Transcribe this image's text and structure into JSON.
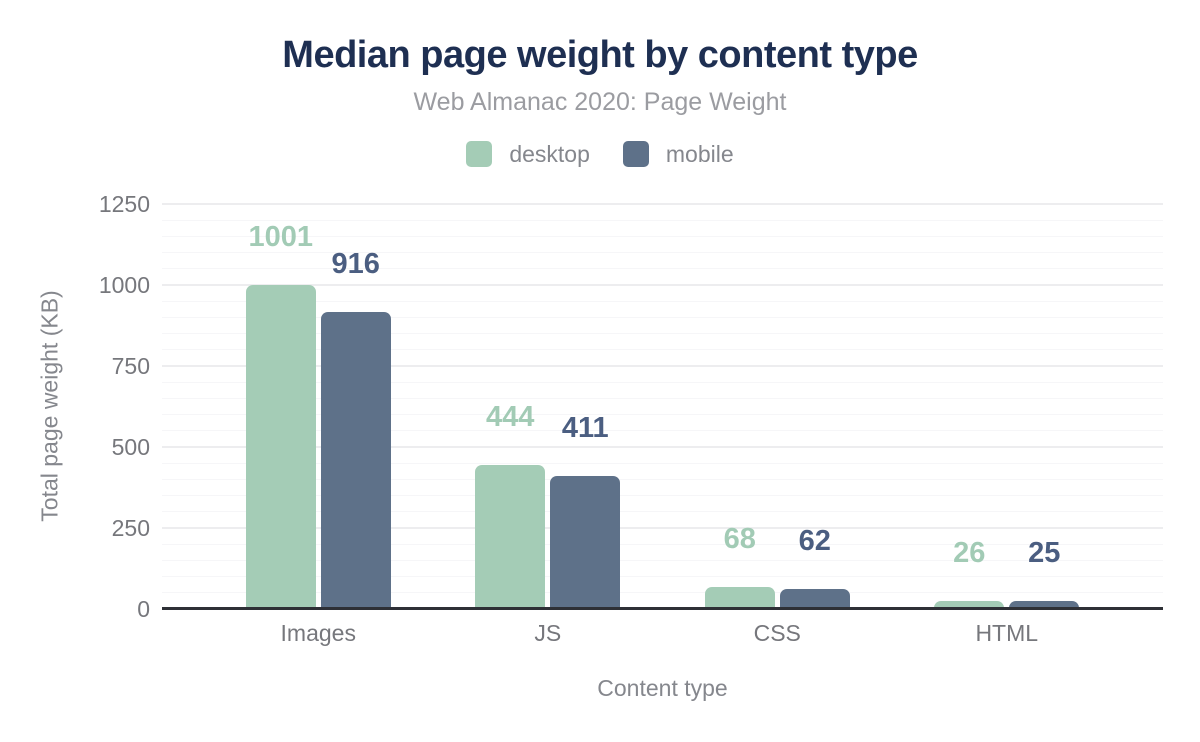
{
  "header": {
    "title": "Median page weight by content type",
    "subtitle": "Web Almanac 2020: Page Weight"
  },
  "chart_data": {
    "type": "bar",
    "title": "Median page weight by content type",
    "subtitle": "Web Almanac 2020: Page Weight",
    "categories": [
      "Images",
      "JS",
      "CSS",
      "HTML"
    ],
    "series": [
      {
        "name": "desktop",
        "color": "#a4ccb6",
        "label_color": "#a2cbb5",
        "values": [
          1001,
          444,
          68,
          26
        ]
      },
      {
        "name": "mobile",
        "color": "#5e7189",
        "label_color": "#4b5e81",
        "values": [
          916,
          411,
          62,
          25
        ]
      }
    ],
    "xlabel": "Content type",
    "ylabel": "Total page weight (KB)",
    "ylim": [
      0,
      1250
    ],
    "yticks": [
      0,
      250,
      500,
      750,
      1000,
      1250
    ],
    "minor_grid_step": 50,
    "grid": true,
    "legend_position": "top",
    "colors": {
      "title_text": "#1e2f52",
      "subtitle_text": "#9b9ca1",
      "tick_text": "#76777c",
      "axis_title_text": "#85878d",
      "axis_line": "#2e3036",
      "major_gridline": "#ededef",
      "minor_gridline": "#f6f6f8",
      "background": "#ffffff"
    }
  }
}
